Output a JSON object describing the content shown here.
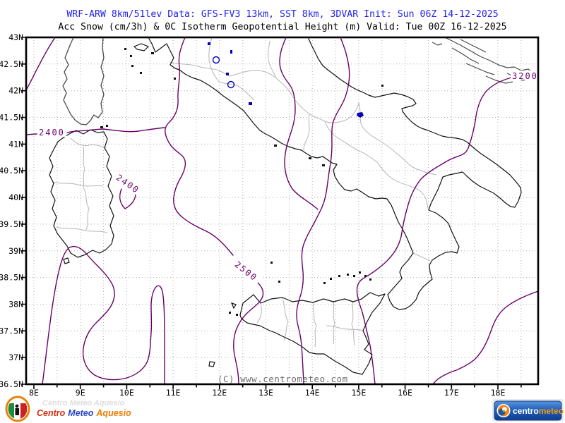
{
  "header": {
    "title_line1": "WRF-ARW 8km/51lev  Data: GFS-FV3 13km, SST 8km, 3DVAR  Init: Sun 06Z 14-12-2025",
    "title_line2": "Acc Snow (cm/3h) & 0C Isotherm Geopotential Height (m)  Valid: Tue 00Z 16-12-2025"
  },
  "map": {
    "watermark": "(C) www.centrometeo.com",
    "y_tick_labels": [
      "43N",
      "42.5N",
      "42N",
      "41.5N",
      "41N",
      "40.5N",
      "40N",
      "39.5N",
      "39N",
      "38.5N",
      "38N",
      "37.5N",
      "37N",
      "36.5N"
    ],
    "x_tick_labels": [
      "8E",
      "9E",
      "10E",
      "11E",
      "12E",
      "13E",
      "14E",
      "15E",
      "16E",
      "17E",
      "18E"
    ],
    "contour_labels": [
      {
        "text": "2400"
      },
      {
        "text": "2400"
      },
      {
        "text": "2500"
      },
      {
        "text": "3200"
      }
    ]
  },
  "chart_data": {
    "type": "contour_map",
    "title": "Acc Snow (cm/3h) & 0C Isotherm Geopotential Height (m)",
    "model": "WRF-ARW 8km/51lev",
    "driving_data": "GFS-FV3 13km, SST 8km, 3DVAR",
    "init_time": "Sun 06Z 14-12-2025",
    "valid_time": "Tue 00Z 16-12-2025",
    "region": "Italy and central Mediterranean",
    "x_axis": {
      "label": "longitude",
      "ticks": [
        "8E",
        "9E",
        "10E",
        "11E",
        "12E",
        "13E",
        "14E",
        "15E",
        "16E",
        "17E",
        "18E"
      ],
      "range": [
        7.8,
        18.9
      ],
      "grid_step_deg": 0.5
    },
    "y_axis": {
      "label": "latitude",
      "ticks": [
        "43N",
        "42.5N",
        "42N",
        "41.5N",
        "41N",
        "40.5N",
        "40N",
        "39.5N",
        "39N",
        "38.5N",
        "38N",
        "37.5N",
        "37N",
        "36.5N"
      ],
      "range": [
        36.5,
        43.0
      ],
      "grid_step_deg": 0.5
    },
    "contour_variable": "0C isotherm geopotential height (m)",
    "contour_levels_labeled": [
      2400,
      2400,
      2500,
      3200
    ],
    "contour_gradient": "heights increase from NW (2400 m near Corsica/Sardinia) to SE (3200 m over southern Adriatic/Ionian)",
    "snow_accumulation_areas": "none shaded on map",
    "grid": "dotted grey every 0.5 degree"
  },
  "logos": {
    "left": {
      "word1": "Centro",
      "word2": "Meteo",
      "word3": "Aquesio",
      "ghost": "Centro Meteo Aquesio"
    },
    "right": {
      "word1": "centro",
      "word2": "meteo"
    }
  },
  "colors": {
    "title_blue": "#2323ee",
    "contour_purple": "#6a0069",
    "coast_black": "#111111",
    "foreign_coast_grey": "#4a4a4a",
    "region_border_grey": "#b5b5b5",
    "grid_grey": "#b0b0b0",
    "lake_blue": "#0000bb",
    "watermark_grey": "#6f6f6f"
  }
}
